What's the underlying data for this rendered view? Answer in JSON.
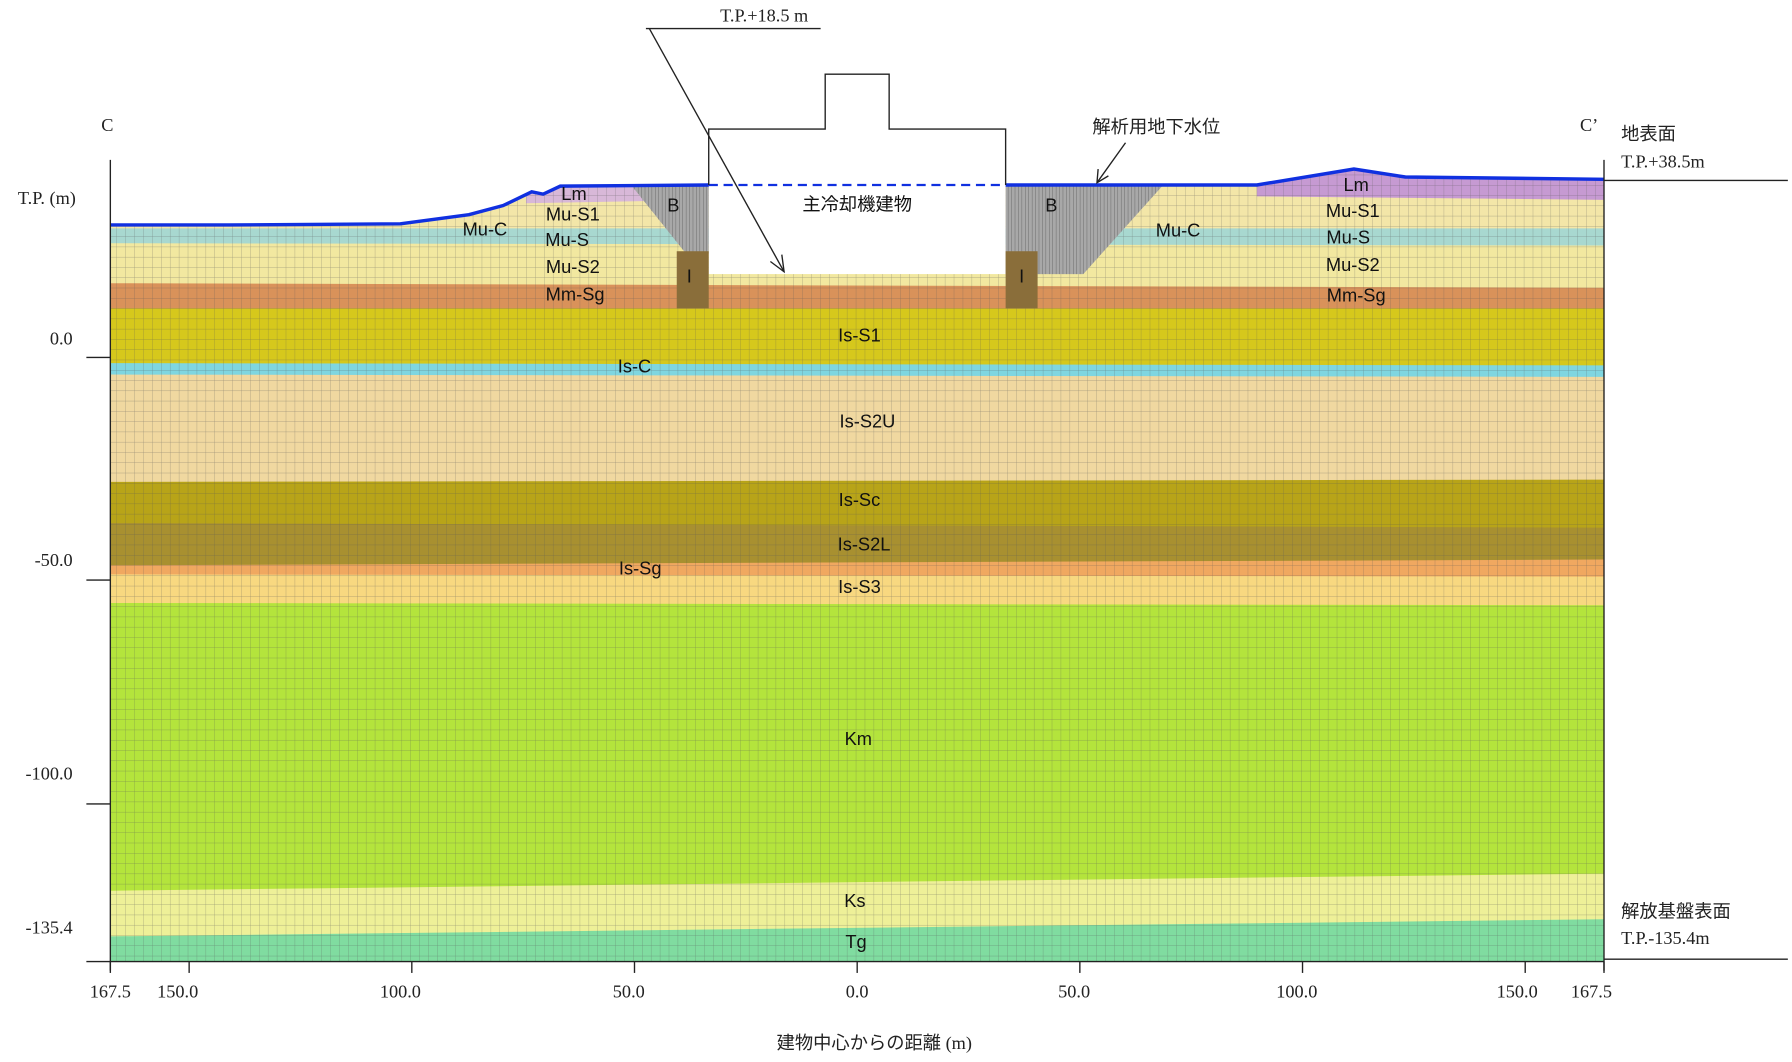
{
  "section": {
    "left": "C",
    "right": "C’"
  },
  "y_axis": {
    "label": "T.P. (m)",
    "ticks": [
      "0.0",
      "-50.0",
      "-100.0",
      "-135.4"
    ]
  },
  "x_axis": {
    "label": "建物中心からの距離 (m)",
    "ticks": [
      "167.5",
      "150.0",
      "100.0",
      "50.0",
      "0.0",
      "50.0",
      "100.0",
      "150.0",
      "167.5"
    ]
  },
  "annotations": {
    "building_top": "T.P.+18.5 m",
    "groundwater": "解析用地下水位",
    "ground_surface": "地表面",
    "ground_surface_level": "T.P.+38.5m",
    "bedrock_surface": "解放基盤表面",
    "bedrock_surface_level": "T.P.-135.4m",
    "building": "主冷却機建物"
  },
  "layer_labels": [
    "Lm",
    "Mu-S1",
    "Mu-C",
    "Mu-S",
    "Mu-S2",
    "Mm-Sg",
    "B",
    "I",
    "B",
    "I",
    "Lm",
    "Mu-S1",
    "Mu-C",
    "Mu-S",
    "Mu-S2",
    "Mm-Sg",
    "Is-S1",
    "Is-C",
    "Is-S2U",
    "Is-Sc",
    "Is-S2L",
    "Is-Sg",
    "Is-S3",
    "Km",
    "Ks",
    "Tg"
  ]
}
